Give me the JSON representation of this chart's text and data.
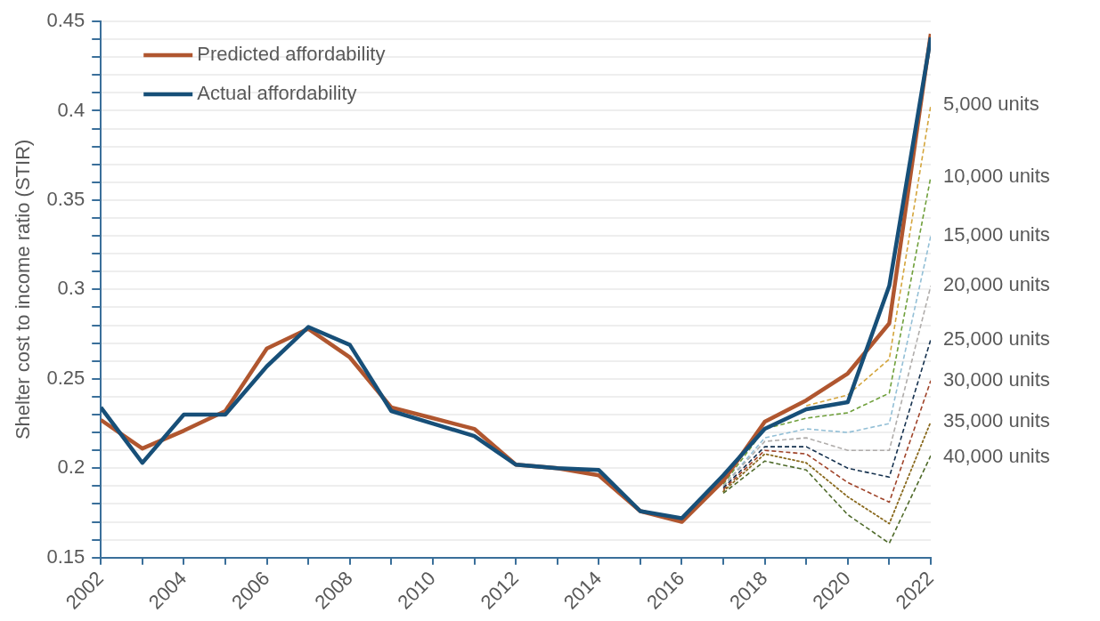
{
  "chart_data": {
    "type": "line",
    "ylabel": "Shelter cost to income ratio (STIR)",
    "legend": "top left",
    "grid": "y",
    "marker": "none",
    "xlim": [
      2002,
      2022
    ],
    "xticks": [
      2002,
      {
        "value": 2003,
        "label": null
      },
      2004,
      {
        "value": 2005,
        "label": null
      },
      2006,
      {
        "value": 2007,
        "label": null
      },
      2008,
      {
        "value": 2009,
        "label": null
      },
      2010,
      {
        "value": 2011,
        "label": null
      },
      2012,
      {
        "value": 2013,
        "label": null
      },
      2014,
      {
        "value": 2015,
        "label": null
      },
      2016,
      {
        "value": 2017,
        "label": null
      },
      2018,
      {
        "value": 2019,
        "label": null
      },
      2020,
      {
        "value": 2021,
        "label": null
      },
      2022
    ],
    "ylim": [
      0.15,
      0.45
    ],
    "yticks": [
      0.15,
      {
        "value": 0.16,
        "label": null
      },
      {
        "value": 0.17,
        "label": null
      },
      {
        "value": 0.18,
        "label": null
      },
      {
        "value": 0.19,
        "label": null
      },
      0.2,
      {
        "value": 0.21,
        "label": null
      },
      {
        "value": 0.22,
        "label": null
      },
      {
        "value": 0.23,
        "label": null
      },
      {
        "value": 0.24,
        "label": null
      },
      0.25,
      {
        "value": 0.26,
        "label": null
      },
      {
        "value": 0.27,
        "label": null
      },
      {
        "value": 0.28,
        "label": null
      },
      {
        "value": 0.29,
        "label": null
      },
      0.3,
      {
        "value": 0.31,
        "label": null
      },
      {
        "value": 0.32,
        "label": null
      },
      {
        "value": 0.33,
        "label": null
      },
      {
        "value": 0.34,
        "label": null
      },
      0.35,
      {
        "value": 0.36,
        "label": null
      },
      {
        "value": 0.37,
        "label": null
      },
      {
        "value": 0.38,
        "label": null
      },
      {
        "value": 0.39,
        "label": null
      },
      0.4,
      {
        "value": 0.41,
        "label": null
      },
      {
        "value": 0.42,
        "label": null
      },
      {
        "value": 0.43,
        "label": null
      },
      {
        "value": 0.44,
        "label": null
      },
      0.45
    ],
    "x": [
      2002,
      2003,
      2004,
      2005,
      2006,
      2007,
      2008,
      2009,
      2010,
      2011,
      2012,
      2013,
      2014,
      2015,
      2016,
      2017,
      2018,
      2019,
      2020,
      2021,
      2022
    ],
    "series": [
      {
        "name": "5,000 units",
        "color": "#d4a53c",
        "line_style": "dashed",
        "x": [
          2019,
          2020,
          2021,
          2022
        ],
        "values": [
          0.235,
          0.241,
          0.261,
          0.403
        ]
      },
      {
        "name": "10,000 units",
        "color": "#70a03c",
        "line_style": "dashed",
        "x": [
          2017,
          2018,
          2019,
          2020,
          2021,
          2022
        ],
        "values": [
          0.191,
          0.222,
          0.228,
          0.231,
          0.242,
          0.363
        ]
      },
      {
        "name": "15,000 units",
        "color": "#93bfd6",
        "line_style": "dashed",
        "x": [
          2017,
          2018,
          2019,
          2020,
          2021,
          2022
        ],
        "values": [
          0.19,
          0.217,
          0.222,
          0.22,
          0.225,
          0.33
        ]
      },
      {
        "name": "20,000 units",
        "color": "#b0adab",
        "line_style": "dashed",
        "x": [
          2017,
          2018,
          2019,
          2020,
          2021,
          2022
        ],
        "values": [
          0.19,
          0.215,
          0.217,
          0.21,
          0.21,
          0.302
        ]
      },
      {
        "name": "25,000 units",
        "color": "#16324f",
        "line_style": "dashed",
        "x": [
          2017,
          2018,
          2019,
          2020,
          2021,
          2022
        ],
        "values": [
          0.189,
          0.212,
          0.212,
          0.2,
          0.195,
          0.272
        ]
      },
      {
        "name": "30,000 units",
        "color": "#a0442a",
        "line_style": "dashed",
        "x": [
          2017,
          2018,
          2019,
          2020,
          2021,
          2022
        ],
        "values": [
          0.188,
          0.21,
          0.208,
          0.192,
          0.181,
          0.249
        ]
      },
      {
        "name": "35,000 units",
        "color": "#8a6a1e",
        "line_style": "dotted",
        "x": [
          2017,
          2018,
          2019,
          2020,
          2021,
          2022
        ],
        "values": [
          0.187,
          0.208,
          0.203,
          0.184,
          0.169,
          0.226
        ]
      },
      {
        "name": "40,000 units",
        "color": "#4e6a2a",
        "line_style": "dashed",
        "x": [
          2017,
          2018,
          2019,
          2020,
          2021,
          2022
        ],
        "values": [
          0.186,
          0.204,
          0.199,
          0.174,
          0.158,
          0.207
        ]
      },
      {
        "name": "Predicted affordability",
        "color": "#b0562f",
        "line_style": "solid",
        "values": [
          0.227,
          0.211,
          0.221,
          0.232,
          0.267,
          0.278,
          0.262,
          0.234,
          0.228,
          0.222,
          0.202,
          0.2,
          0.196,
          0.176,
          0.17,
          0.193,
          0.226,
          0.238,
          0.253,
          0.281,
          0.443
        ]
      },
      {
        "name": "Actual affordability",
        "color": "#174f78",
        "line_style": "solid",
        "values": [
          0.234,
          0.203,
          0.23,
          0.23,
          0.257,
          0.279,
          0.269,
          0.232,
          0.225,
          0.218,
          0.202,
          0.2,
          0.199,
          0.176,
          0.172,
          0.196,
          0.222,
          0.233,
          0.237,
          0.302,
          0.441
        ]
      }
    ]
  }
}
